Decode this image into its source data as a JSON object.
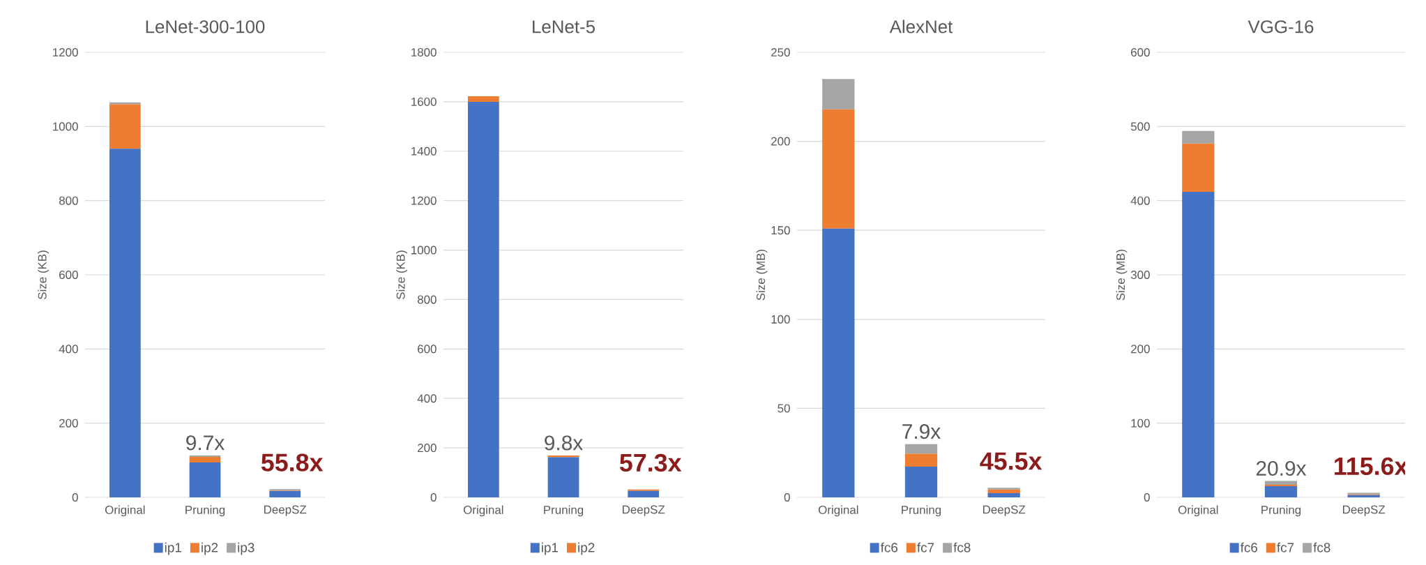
{
  "chart_data": [
    {
      "type": "bar",
      "title": "LeNet-300-100",
      "ylabel": "Size (KB)",
      "categories": [
        "Original",
        "Pruning",
        "DeepSZ"
      ],
      "stacked": true,
      "ylim": [
        0,
        1200
      ],
      "yticks": [
        0,
        200,
        400,
        600,
        800,
        1000,
        1200
      ],
      "grid": "y",
      "legend": "bottom",
      "series": [
        {
          "name": "ip1",
          "color": "#4472c4",
          "values": [
            940,
            94,
            17
          ]
        },
        {
          "name": "ip2",
          "color": "#ed7d31",
          "values": [
            120,
            15,
            1
          ]
        },
        {
          "name": "ip3",
          "color": "#a5a5a5",
          "values": [
            5,
            4,
            4
          ]
        }
      ],
      "annotations": [
        "9.7x",
        "55.8x"
      ]
    },
    {
      "type": "bar",
      "title": "LeNet-5",
      "ylabel": "Size (KB)",
      "categories": [
        "Original",
        "Pruning",
        "DeepSZ"
      ],
      "stacked": true,
      "ylim": [
        0,
        1800
      ],
      "yticks": [
        0,
        200,
        400,
        600,
        800,
        1000,
        1200,
        1400,
        1600,
        1800
      ],
      "grid": "y",
      "legend": "bottom",
      "series": [
        {
          "name": "ip1",
          "color": "#4472c4",
          "values": [
            1600,
            162,
            26
          ]
        },
        {
          "name": "ip2",
          "color": "#ed7d31",
          "values": [
            22,
            7,
            6
          ]
        }
      ],
      "annotations": [
        "9.8x",
        "57.3x"
      ]
    },
    {
      "type": "bar",
      "title": "AlexNet",
      "ylabel": "Size (MB)",
      "categories": [
        "Original",
        "Pruning",
        "DeepSZ"
      ],
      "stacked": true,
      "ylim": [
        0,
        250
      ],
      "yticks": [
        0,
        50,
        100,
        150,
        200,
        250
      ],
      "grid": "y",
      "legend": "bottom",
      "series": [
        {
          "name": "fc6",
          "color": "#4472c4",
          "values": [
            151,
            17.2,
            2.4
          ]
        },
        {
          "name": "fc7",
          "color": "#ed7d31",
          "values": [
            67,
            7.3,
            2
          ]
        },
        {
          "name": "fc8",
          "color": "#a5a5a5",
          "values": [
            17,
            5.4,
            1
          ]
        }
      ],
      "annotations": [
        "7.9x",
        "45.5x"
      ]
    },
    {
      "type": "bar",
      "title": "VGG-16",
      "ylabel": "Size (MB)",
      "categories": [
        "Original",
        "Pruning",
        "DeepSZ"
      ],
      "stacked": true,
      "ylim": [
        0,
        600
      ],
      "yticks": [
        0,
        100,
        200,
        300,
        400,
        500,
        600
      ],
      "grid": "y",
      "legend": "bottom",
      "series": [
        {
          "name": "fc6",
          "color": "#4472c4",
          "values": [
            412,
            15,
            3
          ]
        },
        {
          "name": "fc7",
          "color": "#ed7d31",
          "values": [
            65,
            2,
            1
          ]
        },
        {
          "name": "fc8",
          "color": "#a5a5a5",
          "values": [
            17,
            5,
            2
          ]
        }
      ],
      "annotations": [
        "20.9x",
        "115.6x"
      ]
    }
  ]
}
